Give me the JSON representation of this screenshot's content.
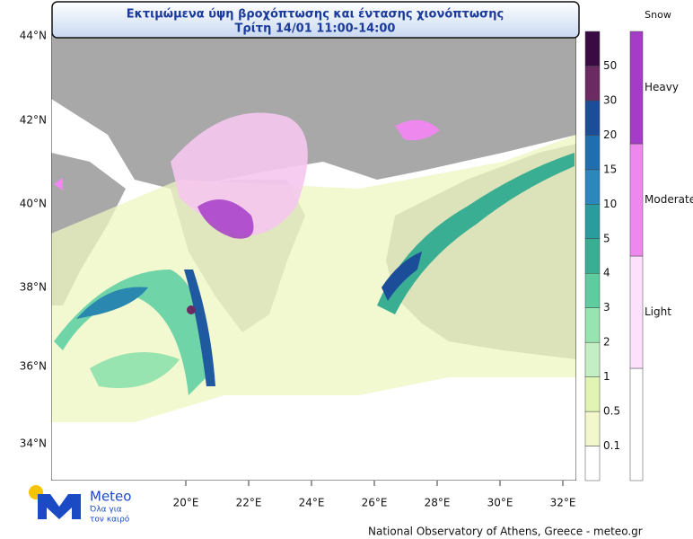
{
  "header": {
    "title": "Εκτιμώμενα ύψη βροχόπτωσης και έντασης χιονόπτωσης",
    "subtitle": "Τρίτη 14/01 11:00-14:00"
  },
  "map": {
    "lat_labels": [
      "44°N",
      "42°N",
      "40°N",
      "38°N",
      "36°N",
      "34°N"
    ],
    "lon_labels": [
      "20°E",
      "22°E",
      "24°E",
      "26°E",
      "28°E",
      "30°E",
      "32°E"
    ]
  },
  "rain_legend": {
    "levels": [
      0.1,
      0.5,
      1,
      2,
      3,
      4,
      5,
      10,
      15,
      20,
      30,
      50
    ],
    "colors": [
      "#ffffff",
      "#f2f8cc",
      "#e2f4b4",
      "#c4eec4",
      "#98e4b0",
      "#5fcca0",
      "#3aae92",
      "#2a9c9e",
      "#2c88bc",
      "#1f6eaf",
      "#1c4d98",
      "#6b2a62",
      "#3a0b42"
    ]
  },
  "snow_legend": {
    "title": "Snow",
    "levels": [
      "Light",
      "Moderate",
      "Heavy"
    ],
    "colors": [
      "#ffffff",
      "#fde0fb",
      "#ee88ee",
      "#a53cc8"
    ]
  },
  "logo": {
    "name": "Meteo",
    "tagline_1": "Όλα για",
    "tagline_2": "τον καιρό"
  },
  "footer": "National Observatory of Athens, Greece - meteo.gr"
}
